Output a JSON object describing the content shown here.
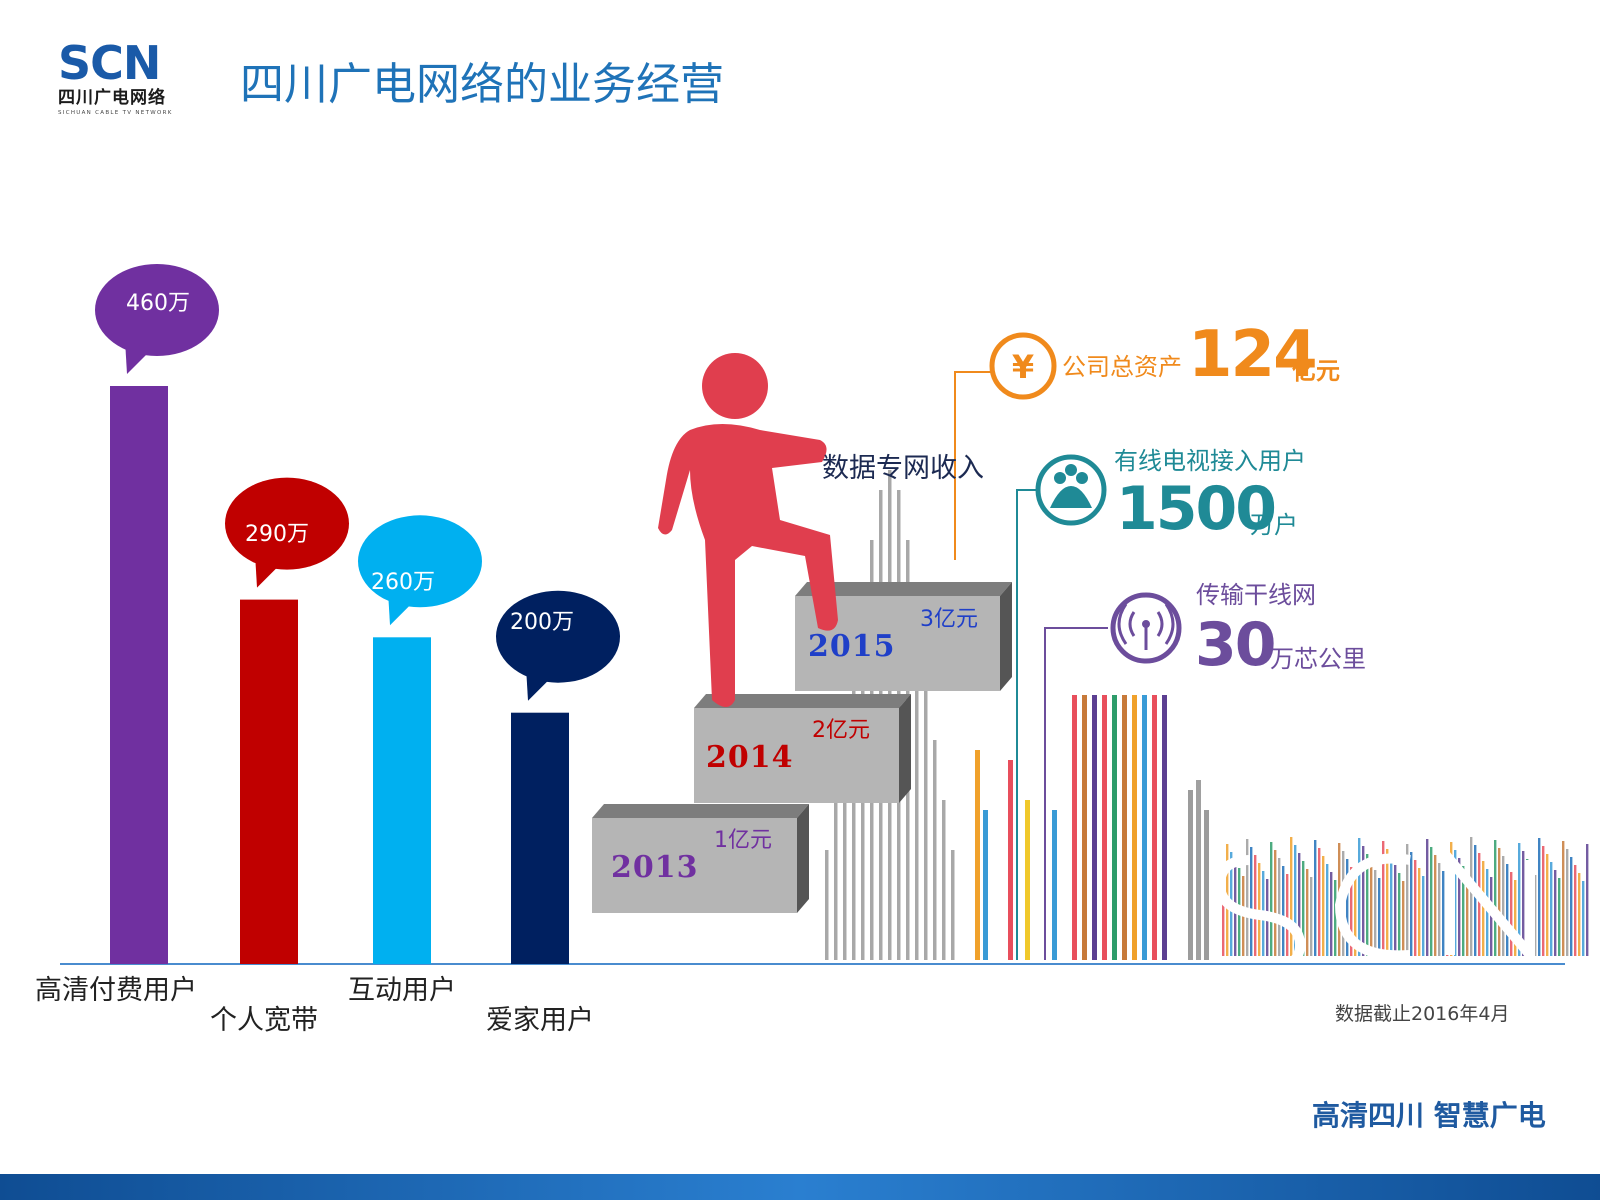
{
  "brand": {
    "logo_word": "SCN",
    "logo_cn": "四川广电网络",
    "logo_en": "SICHUAN CABLE TV NETWORK"
  },
  "title": "四川广电网络的业务经营",
  "chart_data": [
    {
      "type": "bar",
      "categories": [
        "高清付费用户",
        "个人宽带",
        "互动用户",
        "爱家用户"
      ],
      "values": [
        460,
        290,
        260,
        200
      ],
      "value_labels": [
        "460万",
        "290万",
        "260万",
        "200万"
      ],
      "colors": [
        "#7030a0",
        "#c00000",
        "#00b0f0",
        "#002060"
      ],
      "ylim": [
        0,
        480
      ]
    },
    {
      "type": "bar",
      "title": "数据专网收入",
      "categories": [
        "2013",
        "2014",
        "2015"
      ],
      "values": [
        1,
        2,
        3
      ],
      "value_labels": [
        "1亿元",
        "2亿元",
        "3亿元"
      ],
      "year_colors": [
        "#7030a0",
        "#c00000",
        "#1f3fc8"
      ],
      "value_colors": [
        "#7030a0",
        "#c00000",
        "#1f3fc8"
      ]
    }
  ],
  "stats": [
    {
      "label": "公司总资产",
      "value": "124",
      "unit": "亿元",
      "icon": "yuan-icon",
      "color": "#f08a1c"
    },
    {
      "label": "有线电视接入用户",
      "value": "1500",
      "unit": "万户",
      "icon": "people-icon",
      "color": "#1f8a96"
    },
    {
      "label": "传输干线网",
      "value": "30",
      "unit": "万芯公里",
      "icon": "signal-icon",
      "color": "#6c4d9c"
    }
  ],
  "footnote": "数据截止2016年4月",
  "slogan": "高清四川 智慧广电"
}
